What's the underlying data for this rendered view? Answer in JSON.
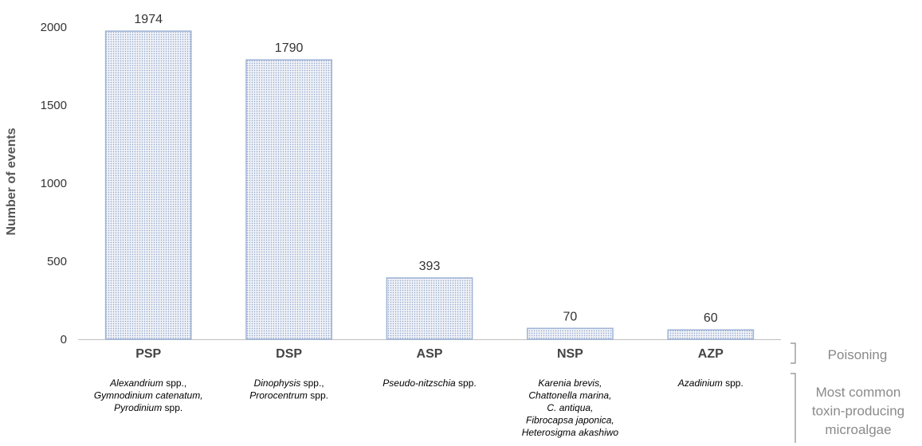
{
  "chart_data": {
    "type": "bar",
    "categories": [
      "PSP",
      "DSP",
      "ASP",
      "NSP",
      "AZP"
    ],
    "values": [
      1974,
      1790,
      393,
      70,
      60
    ],
    "data_labels": [
      "1974",
      "1790",
      "393",
      "70",
      "60"
    ],
    "title": "",
    "xlabel": "",
    "ylabel": "Number of events",
    "ylim": [
      0,
      2000
    ],
    "yticks": [
      "0",
      "500",
      "1000",
      "1500",
      "2000"
    ],
    "ytick_values": [
      0,
      500,
      1000,
      1500,
      2000
    ],
    "grid": false,
    "bar_fill": "#e9edf5",
    "bar_edge": "#9fb4d6",
    "row_labels": {
      "poisoning": "Poisoning",
      "algae": [
        "Most common",
        "toxin-producing",
        "microalgae"
      ]
    },
    "algae_per_category": [
      [
        [
          {
            "t": "Alexandrium",
            "i": true
          },
          {
            "t": " spp.,",
            "i": false
          }
        ],
        [
          {
            "t": "Gymnodinium catenatum,",
            "i": true
          }
        ],
        [
          {
            "t": "Pyrodinium",
            "i": true
          },
          {
            "t": " spp.",
            "i": false
          }
        ]
      ],
      [
        [
          {
            "t": "Dinophysis",
            "i": true
          },
          {
            "t": " spp.,",
            "i": false
          }
        ],
        [
          {
            "t": "Prorocentrum",
            "i": true
          },
          {
            "t": " spp.",
            "i": false
          }
        ]
      ],
      [
        [
          {
            "t": "Pseudo-nitzschia",
            "i": true
          },
          {
            "t": " spp.",
            "i": false
          }
        ]
      ],
      [
        [
          {
            "t": "Karenia brevis,",
            "i": true
          }
        ],
        [
          {
            "t": "Chattonella marina,",
            "i": true
          }
        ],
        [
          {
            "t": "C. antiqua,",
            "i": true
          }
        ],
        [
          {
            "t": "Fibrocapsa japonica,",
            "i": true
          }
        ],
        [
          {
            "t": "Heterosigma akashiwo",
            "i": true
          }
        ]
      ],
      [
        [
          {
            "t": "Azadinium",
            "i": true
          },
          {
            "t": " spp.",
            "i": false
          }
        ]
      ]
    ]
  }
}
